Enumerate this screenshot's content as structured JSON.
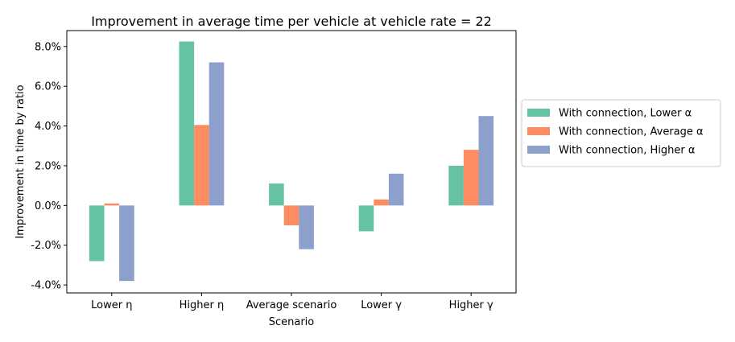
{
  "chart_data": {
    "type": "bar",
    "title": "Improvement in average time per vehicle at vehicle rate = 22",
    "xlabel": "Scenario",
    "ylabel": "Improvement in time by ratio",
    "categories": [
      "Lower η",
      "Higher η",
      "Average scenario",
      "Lower γ",
      "Higher γ"
    ],
    "ylim": [
      -0.044,
      0.088
    ],
    "yticks": [
      -0.04,
      -0.02,
      0.0,
      0.02,
      0.04,
      0.06,
      0.08
    ],
    "ytick_labels": [
      "-4.0%",
      "-2.0%",
      "0.0%",
      "2.0%",
      "4.0%",
      "6.0%",
      "8.0%"
    ],
    "grid": false,
    "legend_position": "outside-right",
    "series": [
      {
        "name": "With connection, Lower α",
        "color": "#66c2a5",
        "values": [
          -0.028,
          0.0825,
          0.011,
          -0.013,
          0.02
        ]
      },
      {
        "name": "With connection, Average α",
        "color": "#fc8d62",
        "values": [
          0.001,
          0.0405,
          -0.01,
          0.003,
          0.028
        ]
      },
      {
        "name": "With connection, Higher α",
        "color": "#8da0cb",
        "values": [
          -0.038,
          0.072,
          -0.022,
          0.016,
          0.045
        ]
      }
    ]
  }
}
